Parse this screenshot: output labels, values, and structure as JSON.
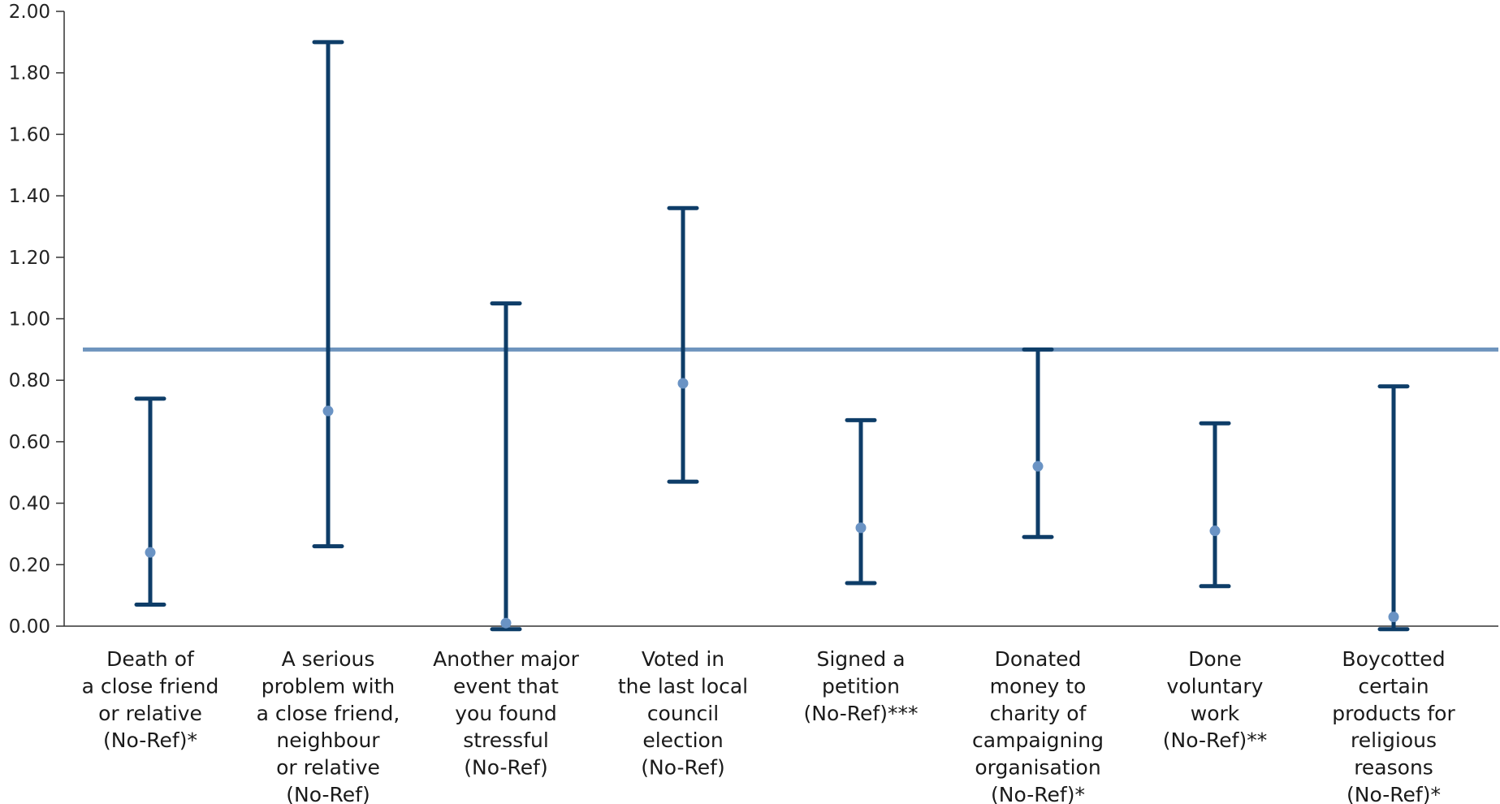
{
  "chart_data": {
    "type": "errorbar",
    "title": "",
    "xlabel": "",
    "ylabel": "",
    "ylim": [
      0,
      2
    ],
    "yticks": [
      "0.00",
      "0.20",
      "0.40",
      "0.60",
      "0.80",
      "1.00",
      "1.20",
      "1.40",
      "1.60",
      "1.80",
      "2.00"
    ],
    "reference_line": 0.9,
    "grid": false,
    "colors": {
      "bars": "#0e3d68",
      "points": "#6a93c4",
      "reference": "#6e94bd",
      "axis": "#333333"
    },
    "categories": [
      [
        "Death of",
        "a close friend",
        "or relative",
        "(No-Ref)*"
      ],
      [
        "A serious",
        "problem with",
        "a close friend,",
        "neighbour",
        "or relative",
        "(No-Ref)"
      ],
      [
        "Another major",
        "event that",
        "you found",
        "stressful",
        "(No-Ref)"
      ],
      [
        "Voted in",
        "the last local",
        "council",
        "election",
        "(No-Ref)"
      ],
      [
        "Signed a",
        "petition",
        "(No-Ref)***"
      ],
      [
        "Donated",
        "money to",
        "charity of",
        "campaigning",
        "organisation",
        "(No-Ref)*"
      ],
      [
        "Done",
        "voluntary",
        "work",
        "(No-Ref)**"
      ],
      [
        "Boycotted",
        "certain",
        "products for",
        "religious",
        "reasons",
        "(No-Ref)*"
      ]
    ],
    "estimates": [
      0.24,
      0.7,
      0.01,
      0.79,
      0.32,
      0.52,
      0.31,
      0.03
    ],
    "lower": [
      0.07,
      0.26,
      -0.01,
      0.47,
      0.14,
      0.29,
      0.13,
      -0.01
    ],
    "upper": [
      0.74,
      1.9,
      1.05,
      1.36,
      0.67,
      0.9,
      0.66,
      0.78
    ]
  }
}
